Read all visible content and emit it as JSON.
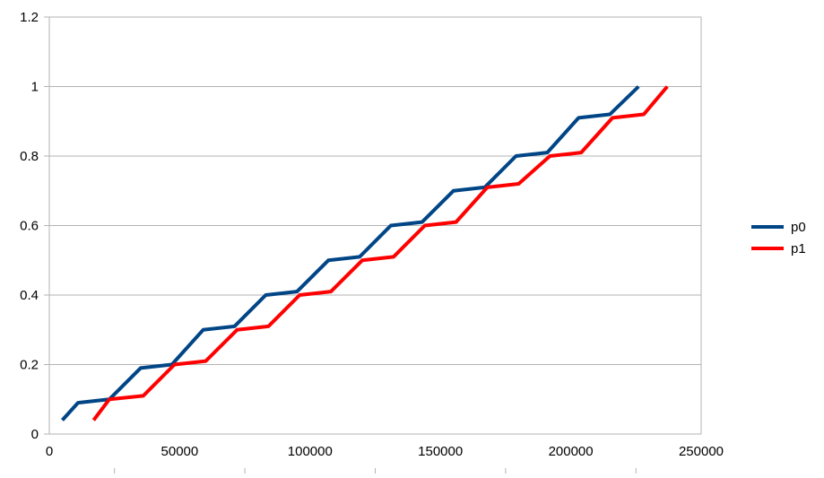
{
  "chart_data": {
    "type": "line",
    "title": "",
    "xlabel": "",
    "ylabel": "",
    "xlim": [
      0,
      250000
    ],
    "ylim": [
      0,
      1.2
    ],
    "x_ticks": [
      0,
      50000,
      100000,
      150000,
      200000,
      250000
    ],
    "y_ticks": [
      0,
      0.2,
      0.4,
      0.6,
      0.8,
      1,
      1.2
    ],
    "x_tick_labels": [
      "0",
      "50000",
      "100000",
      "150000",
      "200000",
      "250000"
    ],
    "y_tick_labels": [
      "0",
      "0.2",
      "0.4",
      "0.6",
      "0.8",
      "1",
      "1.2"
    ],
    "grid": "horizontal",
    "legend_position": "right",
    "series": [
      {
        "name": "p0",
        "color": "#004586",
        "points": [
          [
            5000,
            0.04
          ],
          [
            11000,
            0.09
          ],
          [
            23000,
            0.1
          ],
          [
            35000,
            0.19
          ],
          [
            47000,
            0.2
          ],
          [
            59000,
            0.3
          ],
          [
            71000,
            0.31
          ],
          [
            83000,
            0.4
          ],
          [
            95000,
            0.41
          ],
          [
            107000,
            0.5
          ],
          [
            119000,
            0.51
          ],
          [
            131000,
            0.6
          ],
          [
            143000,
            0.61
          ],
          [
            155000,
            0.7
          ],
          [
            167000,
            0.71
          ],
          [
            179000,
            0.8
          ],
          [
            191000,
            0.81
          ],
          [
            203000,
            0.91
          ],
          [
            215000,
            0.92
          ],
          [
            226000,
            1.0
          ]
        ]
      },
      {
        "name": "p1",
        "color": "#ff0000",
        "points": [
          [
            17000,
            0.04
          ],
          [
            23000,
            0.1
          ],
          [
            36000,
            0.11
          ],
          [
            48000,
            0.2
          ],
          [
            60000,
            0.21
          ],
          [
            72000,
            0.3
          ],
          [
            84000,
            0.31
          ],
          [
            96000,
            0.4
          ],
          [
            108000,
            0.41
          ],
          [
            120000,
            0.5
          ],
          [
            132000,
            0.51
          ],
          [
            144000,
            0.6
          ],
          [
            156000,
            0.61
          ],
          [
            168000,
            0.71
          ],
          [
            180000,
            0.72
          ],
          [
            192000,
            0.8
          ],
          [
            204000,
            0.81
          ],
          [
            216000,
            0.91
          ],
          [
            228000,
            0.92
          ],
          [
            237000,
            1.0
          ]
        ]
      }
    ]
  }
}
